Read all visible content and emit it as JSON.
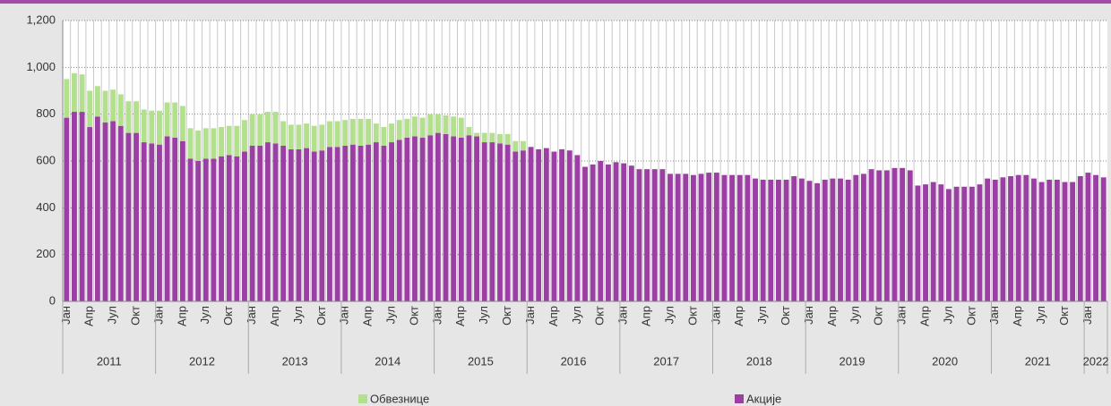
{
  "chart_data": {
    "type": "stacked_bar",
    "categories": [
      "Јан",
      null,
      null,
      "Апр",
      null,
      null,
      "Јул",
      null,
      null,
      "Окт",
      null,
      null,
      "Јан",
      null,
      null,
      "Апр",
      null,
      null,
      "Јул",
      null,
      null,
      "Окт",
      null,
      null,
      "Јан",
      null,
      null,
      "Апр",
      null,
      null,
      "Јул",
      null,
      null,
      "Окт",
      null,
      null,
      "Јан",
      null,
      null,
      "Апр",
      null,
      null,
      "Јул",
      null,
      null,
      "Окт",
      null,
      null,
      "Јан",
      null,
      null,
      "Апр",
      null,
      null,
      "Јул",
      null,
      null,
      "Окт",
      null,
      null,
      "Јан",
      null,
      null,
      "Апр",
      null,
      null,
      "Јул",
      null,
      null,
      "Окт",
      null,
      null,
      "Јан",
      null,
      null,
      "Апр",
      null,
      null,
      "Јул",
      null,
      null,
      "Окт",
      null,
      null,
      "Јан",
      null,
      null,
      "Апр",
      null,
      null,
      "Јул",
      null,
      null,
      "Окт",
      null,
      null,
      "Јан",
      null,
      null,
      "Апр",
      null,
      null,
      "Јул",
      null,
      null,
      "Окт",
      null,
      null,
      "Јан",
      null,
      null,
      "Апр",
      null,
      null,
      "Јул",
      null,
      null,
      "Окт",
      null,
      null,
      "Јан",
      null,
      null,
      "Апр",
      null,
      null,
      "Јул",
      null,
      null,
      "Окт",
      null,
      null,
      "Јан",
      null,
      null
    ],
    "year_labels": [
      "2011",
      "2012",
      "2013",
      "2014",
      "2015",
      "2016",
      "2017",
      "2018",
      "2019",
      "2020",
      "2021",
      "2022"
    ],
    "series": [
      {
        "name": "Акције",
        "color": "#9c3fa4",
        "values": [
          785,
          810,
          810,
          745,
          790,
          765,
          770,
          750,
          720,
          720,
          680,
          675,
          670,
          705,
          700,
          685,
          610,
          600,
          610,
          610,
          620,
          625,
          620,
          640,
          665,
          665,
          680,
          675,
          665,
          650,
          650,
          655,
          640,
          645,
          660,
          660,
          665,
          670,
          665,
          670,
          680,
          665,
          680,
          690,
          700,
          705,
          700,
          710,
          720,
          715,
          705,
          700,
          710,
          705,
          680,
          680,
          675,
          670,
          640,
          645,
          660,
          650,
          655,
          640,
          650,
          645,
          625,
          575,
          585,
          600,
          585,
          595,
          590,
          580,
          565,
          565,
          565,
          565,
          545,
          545,
          545,
          540,
          545,
          550,
          550,
          540,
          540,
          540,
          540,
          525,
          520,
          520,
          520,
          520,
          535,
          525,
          515,
          505,
          520,
          525,
          525,
          520,
          540,
          545,
          565,
          560,
          560,
          570,
          570,
          560,
          495,
          500,
          510,
          500,
          480,
          490,
          490,
          490,
          500,
          525,
          520,
          530,
          535,
          540,
          540,
          525,
          510,
          520,
          520,
          510,
          510,
          535,
          550,
          540,
          530
        ]
      },
      {
        "name": "Обвезнице",
        "color": "#b3e08c",
        "values": [
          165,
          165,
          160,
          155,
          130,
          135,
          135,
          135,
          135,
          135,
          140,
          140,
          145,
          145,
          150,
          150,
          130,
          130,
          130,
          130,
          125,
          125,
          130,
          135,
          135,
          135,
          130,
          135,
          105,
          105,
          105,
          105,
          110,
          110,
          110,
          110,
          110,
          110,
          115,
          110,
          80,
          80,
          80,
          85,
          80,
          85,
          85,
          90,
          80,
          80,
          85,
          85,
          35,
          15,
          40,
          40,
          40,
          45,
          45,
          40,
          0,
          0,
          0,
          0,
          0,
          0,
          0,
          0,
          0,
          0,
          0,
          0,
          0,
          0,
          0,
          0,
          0,
          0,
          0,
          0,
          0,
          0,
          0,
          0,
          0,
          0,
          0,
          0,
          0,
          0,
          0,
          0,
          0,
          0,
          0,
          0,
          0,
          0,
          0,
          0,
          0,
          0,
          0,
          0,
          0,
          0,
          0,
          0,
          0,
          0,
          0,
          0,
          0,
          0,
          0,
          0,
          0,
          0,
          0,
          0,
          0,
          0,
          0,
          0,
          0,
          0,
          0,
          0,
          0,
          0,
          0,
          0,
          0,
          0,
          0
        ]
      }
    ],
    "ylim": [
      0,
      1200
    ],
    "yticks": [
      0,
      200,
      400,
      600,
      800,
      {
        "value": 1000,
        "label": "1,000"
      },
      {
        "value": 1200,
        "label": "1,200"
      }
    ],
    "grid": true,
    "legend": "bottom"
  }
}
